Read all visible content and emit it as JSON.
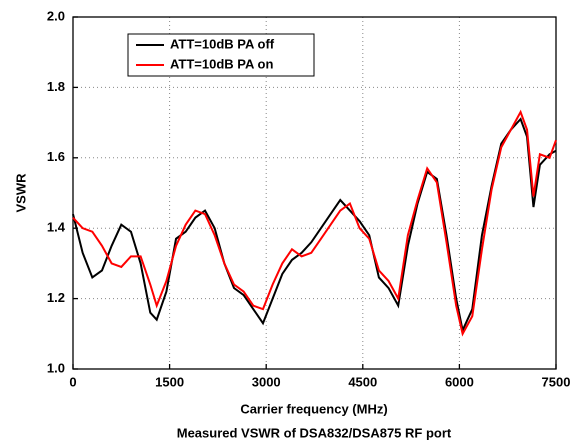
{
  "chart_data": {
    "type": "line",
    "title": "Measured VSWR of DSA832/DSA875 RF port",
    "x_label": "Carrier frequency (MHz)",
    "y_label": "VSWR",
    "x": [
      0,
      150,
      300,
      450,
      600,
      750,
      900,
      1050,
      1200,
      1300,
      1450,
      1600,
      1750,
      1900,
      2050,
      2200,
      2350,
      2500,
      2650,
      2800,
      2950,
      3100,
      3250,
      3400,
      3550,
      3700,
      3850,
      4000,
      4150,
      4300,
      4450,
      4600,
      4750,
      4900,
      5050,
      5200,
      5350,
      5500,
      5650,
      5800,
      5950,
      6050,
      6200,
      6350,
      6500,
      6650,
      6800,
      6950,
      7050,
      7150,
      7250,
      7400,
      7500
    ],
    "series": [
      {
        "name": "ATT=10dB PA off",
        "color": "#000000",
        "values": [
          1.44,
          1.33,
          1.26,
          1.28,
          1.35,
          1.41,
          1.39,
          1.3,
          1.16,
          1.14,
          1.22,
          1.37,
          1.39,
          1.43,
          1.45,
          1.4,
          1.3,
          1.23,
          1.21,
          1.17,
          1.13,
          1.2,
          1.27,
          1.31,
          1.33,
          1.36,
          1.4,
          1.44,
          1.48,
          1.45,
          1.42,
          1.38,
          1.26,
          1.23,
          1.18,
          1.35,
          1.47,
          1.56,
          1.54,
          1.38,
          1.2,
          1.11,
          1.17,
          1.38,
          1.52,
          1.64,
          1.68,
          1.71,
          1.66,
          1.46,
          1.58,
          1.61,
          1.62
        ]
      },
      {
        "name": "ATT=10dB PA on",
        "color": "#ff0000",
        "values": [
          1.43,
          1.4,
          1.39,
          1.35,
          1.3,
          1.29,
          1.32,
          1.32,
          1.24,
          1.18,
          1.25,
          1.35,
          1.41,
          1.45,
          1.44,
          1.38,
          1.3,
          1.24,
          1.22,
          1.18,
          1.17,
          1.24,
          1.3,
          1.34,
          1.32,
          1.33,
          1.37,
          1.41,
          1.45,
          1.47,
          1.4,
          1.37,
          1.28,
          1.25,
          1.2,
          1.38,
          1.48,
          1.57,
          1.53,
          1.36,
          1.18,
          1.1,
          1.15,
          1.34,
          1.51,
          1.63,
          1.68,
          1.73,
          1.68,
          1.49,
          1.61,
          1.6,
          1.65
        ]
      }
    ],
    "xlim": [
      0,
      7500
    ],
    "xticks": [
      0,
      1500,
      3000,
      4500,
      6000,
      7500
    ],
    "ylim": [
      1.0,
      2.0
    ],
    "yticks": [
      {
        "value": 1.0,
        "label": "1.0"
      },
      1.2,
      1.4,
      1.6,
      1.8,
      {
        "value": 2.0,
        "label": "2.0"
      }
    ],
    "grid": true,
    "legend": "upper-left"
  }
}
